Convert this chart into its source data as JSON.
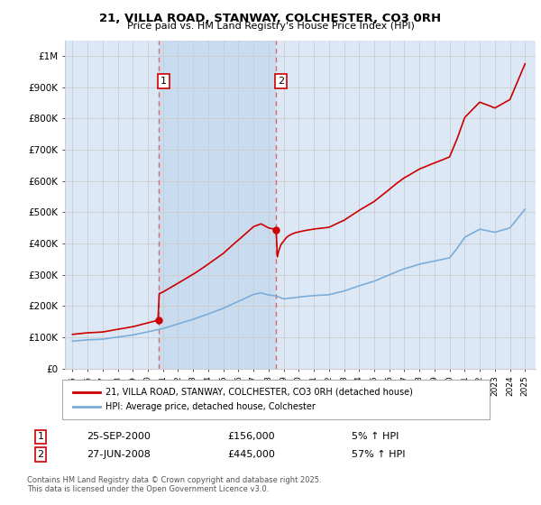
{
  "title": "21, VILLA ROAD, STANWAY, COLCHESTER, CO3 0RH",
  "subtitle": "Price paid vs. HM Land Registry's House Price Index (HPI)",
  "legend_label_red": "21, VILLA ROAD, STANWAY, COLCHESTER, CO3 0RH (detached house)",
  "legend_label_blue": "HPI: Average price, detached house, Colchester",
  "annotation1_date": "25-SEP-2000",
  "annotation1_price": "£156,000",
  "annotation1_hpi": "5% ↑ HPI",
  "annotation1_year": 2000.73,
  "annotation1_value": 156000,
  "annotation2_date": "27-JUN-2008",
  "annotation2_price": "£445,000",
  "annotation2_hpi": "57% ↑ HPI",
  "annotation2_year": 2008.49,
  "annotation2_value": 445000,
  "footer": "Contains HM Land Registry data © Crown copyright and database right 2025.\nThis data is licensed under the Open Government Licence v3.0.",
  "red_color": "#cc0000",
  "blue_color": "#7aadda",
  "vline_color": "#dd6666",
  "grid_color": "#cccccc",
  "background_color": "#dce8f5",
  "shade_color": "#c5d9ee",
  "ylim_max": 1000000,
  "xlim_min": 1994.5,
  "xlim_max": 2025.7
}
